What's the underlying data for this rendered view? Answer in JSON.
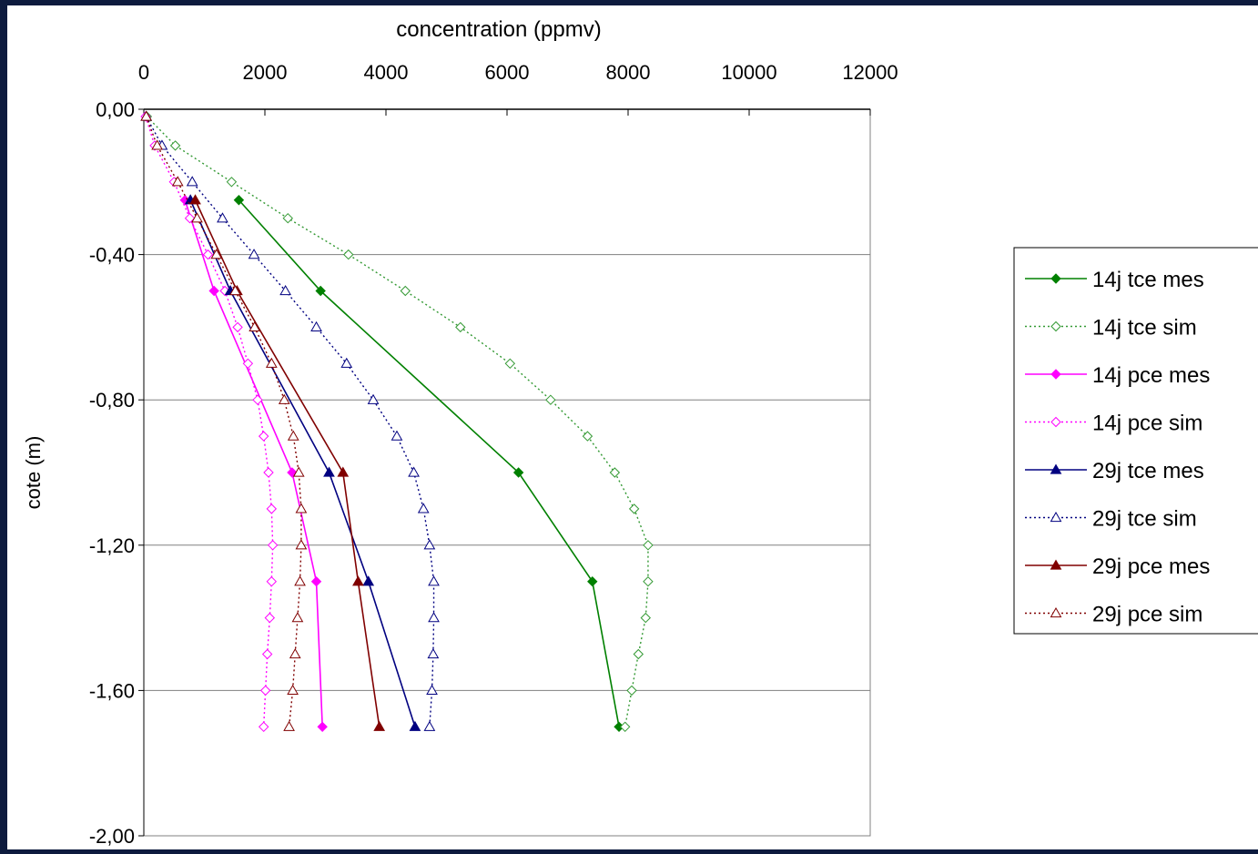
{
  "chart_data": {
    "type": "line",
    "x_axis": {
      "label": "concentration (ppmv)",
      "position": "top",
      "range": [
        0,
        12000
      ],
      "tick_labels": [
        "0",
        "2000",
        "4000",
        "6000",
        "8000",
        "10000",
        "12000"
      ]
    },
    "y_axis": {
      "label": "cote (m)",
      "range": [
        -2.0,
        0.0
      ],
      "tick_labels": [
        "0,00",
        "-0,40",
        "-0,80",
        "-1,20",
        "-1,60",
        "-2,00"
      ]
    },
    "grid": "horizontal",
    "legend": "right",
    "series": [
      {
        "name": "14j tce mes",
        "color": "#008000",
        "line": "solid",
        "marker": "diamond-filled",
        "x": [
          1570,
          2920,
          6190,
          7410,
          7850
        ],
        "y": [
          -0.25,
          -0.5,
          -1.0,
          -1.3,
          -1.7
        ]
      },
      {
        "name": "14j tce sim",
        "color": "#339933",
        "line": "dotted",
        "marker": "diamond-open",
        "x": [
          50,
          520,
          1450,
          2380,
          3380,
          4320,
          5230,
          6050,
          6720,
          7330,
          7780,
          8100,
          8330,
          8330,
          8290,
          8170,
          8060,
          7950
        ],
        "y": [
          -0.02,
          -0.1,
          -0.2,
          -0.3,
          -0.4,
          -0.5,
          -0.6,
          -0.7,
          -0.8,
          -0.9,
          -1.0,
          -1.1,
          -1.2,
          -1.3,
          -1.4,
          -1.5,
          -1.6,
          -1.7
        ]
      },
      {
        "name": "14j pce mes",
        "color": "#ff00ff",
        "line": "solid",
        "marker": "diamond-filled",
        "x": [
          680,
          1160,
          2450,
          2850,
          2950
        ],
        "y": [
          -0.25,
          -0.5,
          -1.0,
          -1.3,
          -1.7
        ]
      },
      {
        "name": "14j pce sim",
        "color": "#ff00ff",
        "line": "dotted",
        "marker": "diamond-open",
        "x": [
          30,
          180,
          500,
          760,
          1060,
          1340,
          1550,
          1720,
          1880,
          1980,
          2060,
          2110,
          2130,
          2110,
          2080,
          2040,
          2010,
          1980
        ],
        "y": [
          -0.02,
          -0.1,
          -0.2,
          -0.3,
          -0.4,
          -0.5,
          -0.6,
          -0.7,
          -0.8,
          -0.9,
          -1.0,
          -1.1,
          -1.2,
          -1.3,
          -1.4,
          -1.5,
          -1.6,
          -1.7
        ]
      },
      {
        "name": "29j tce mes",
        "color": "#000080",
        "line": "solid",
        "marker": "triangle-filled",
        "x": [
          770,
          1430,
          3060,
          3710,
          4480
        ],
        "y": [
          -0.25,
          -0.5,
          -1.0,
          -1.3,
          -1.7
        ]
      },
      {
        "name": "29j tce sim",
        "color": "#000080",
        "line": "dotted",
        "marker": "triangle-open",
        "x": [
          40,
          300,
          800,
          1300,
          1820,
          2340,
          2850,
          3350,
          3790,
          4180,
          4460,
          4620,
          4720,
          4790,
          4790,
          4780,
          4760,
          4720
        ],
        "y": [
          -0.02,
          -0.1,
          -0.2,
          -0.3,
          -0.4,
          -0.5,
          -0.6,
          -0.7,
          -0.8,
          -0.9,
          -1.0,
          -1.1,
          -1.2,
          -1.3,
          -1.4,
          -1.5,
          -1.6,
          -1.7
        ]
      },
      {
        "name": "29j pce mes",
        "color": "#800000",
        "line": "solid",
        "marker": "triangle-filled",
        "x": [
          850,
          1540,
          3290,
          3540,
          3890
        ],
        "y": [
          -0.25,
          -0.5,
          -1.0,
          -1.3,
          -1.7
        ]
      },
      {
        "name": "29j pce sim",
        "color": "#800000",
        "line": "dotted",
        "marker": "triangle-open",
        "x": [
          40,
          220,
          560,
          880,
          1200,
          1510,
          1830,
          2110,
          2320,
          2470,
          2560,
          2600,
          2600,
          2580,
          2540,
          2500,
          2460,
          2400
        ],
        "y": [
          -0.02,
          -0.1,
          -0.2,
          -0.3,
          -0.4,
          -0.5,
          -0.6,
          -0.7,
          -0.8,
          -0.9,
          -1.0,
          -1.1,
          -1.2,
          -1.3,
          -1.4,
          -1.5,
          -1.6,
          -1.7
        ]
      }
    ]
  }
}
